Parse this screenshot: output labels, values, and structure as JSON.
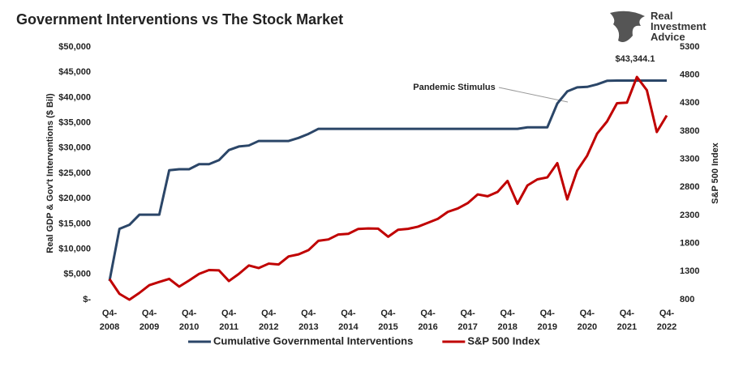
{
  "chart_data": {
    "type": "line",
    "title": "Government Interventions vs The Stock Market",
    "logo": "Real\nInvestment\nAdvice",
    "y_label": "Real GDP & Gov't Interventions ($ Bil)",
    "y2_label": "S&P 500 Index",
    "categories": [
      "Q4-\n2008",
      null,
      null,
      null,
      "Q4-\n2009",
      null,
      null,
      null,
      "Q4-\n2010",
      null,
      null,
      null,
      "Q4-\n2011",
      null,
      null,
      null,
      "Q4-\n2012",
      null,
      null,
      null,
      "Q4-\n2013",
      null,
      null,
      null,
      "Q4-\n2014",
      null,
      null,
      null,
      "Q4-\n2015",
      null,
      null,
      null,
      "Q4-\n2016",
      null,
      null,
      null,
      "Q4-\n2017",
      null,
      null,
      null,
      "Q4-\n2018",
      null,
      null,
      null,
      "Q4-\n2019",
      null,
      null,
      null,
      "Q4-\n2020",
      null,
      null,
      null,
      "Q4-\n2021",
      null,
      null,
      null,
      "Q4-\n2022"
    ],
    "series": [
      {
        "name": "Cumulative Governmental Interventions",
        "color": "#2b4668",
        "axis": "y",
        "values": [
          3700,
          14000,
          14800,
          16800,
          16800,
          16800,
          25600,
          25800,
          25800,
          26800,
          26800,
          27600,
          29600,
          30300,
          30500,
          31400,
          31400,
          31400,
          31400,
          32000,
          32800,
          33800,
          33800,
          33800,
          33800,
          33800,
          33800,
          33800,
          33800,
          33800,
          33800,
          33800,
          33800,
          33800,
          33800,
          33800,
          33800,
          33800,
          33800,
          33800,
          33800,
          33800,
          34100,
          34100,
          34100,
          38800,
          41200,
          42000,
          42100,
          42600,
          43300,
          43344.1,
          43344.1,
          43344.1,
          43344.1,
          43344.1,
          43344.1
        ]
      },
      {
        "name": "S&P 500 Index",
        "color": "#c00000",
        "axis": "y2",
        "values": [
          1166,
          903,
          798,
          919,
          1057,
          1115,
          1169,
          1031,
          1141,
          1258,
          1326,
          1321,
          1131,
          1258,
          1408,
          1362,
          1441,
          1426,
          1569,
          1606,
          1682,
          1848,
          1872,
          1960,
          1972,
          2059,
          2068,
          2063,
          1920,
          2044,
          2060,
          2099,
          2168,
          2239,
          2363,
          2423,
          2519,
          2674,
          2641,
          2718,
          2914,
          2507,
          2834,
          2942,
          2977,
          3231,
          2585,
          3100,
          3363,
          3756,
          3973,
          4298,
          4308,
          4766,
          4530,
          3785,
          4080
        ]
      }
    ],
    "ylim": [
      0,
      50000
    ],
    "yticks": [
      {
        "value": 0,
        "label": "$-"
      },
      {
        "value": 5000,
        "label": "$5,000"
      },
      {
        "value": 10000,
        "label": "$10,000"
      },
      {
        "value": 15000,
        "label": "$15,000"
      },
      {
        "value": 20000,
        "label": "$20,000"
      },
      {
        "value": 25000,
        "label": "$25,000"
      },
      {
        "value": 30000,
        "label": "$30,000"
      },
      {
        "value": 35000,
        "label": "$35,000"
      },
      {
        "value": 40000,
        "label": "$40,000"
      },
      {
        "value": 45000,
        "label": "$45,000"
      },
      {
        "value": 50000,
        "label": "$50,000"
      }
    ],
    "y2lim": [
      800,
      5300
    ],
    "y2ticks": [
      800,
      1300,
      1800,
      2300,
      2800,
      3300,
      3800,
      4300,
      4800,
      5300
    ],
    "annotations": [
      "Pandemic Stimulus",
      "$43,344.1"
    ],
    "legend": "bottom"
  }
}
